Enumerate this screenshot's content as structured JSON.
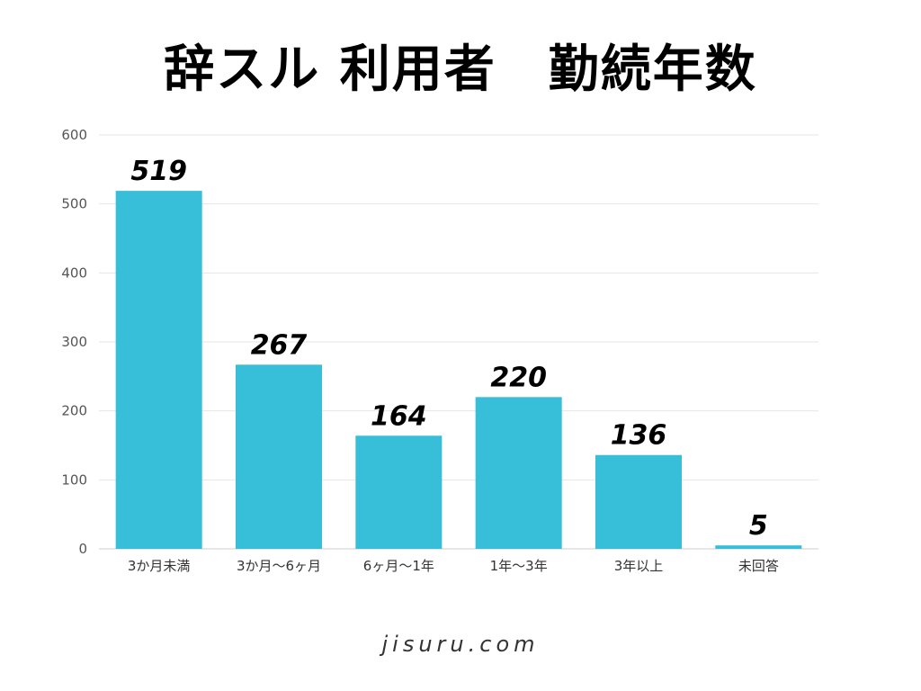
{
  "chart_data": {
    "type": "bar",
    "title": "辞スル 利用者　勤続年数",
    "categories": [
      "3か月未満",
      "3か月～6ヶ月",
      "6ヶ月～1年",
      "1年～3年",
      "3年以上",
      "未回答"
    ],
    "values": [
      519,
      267,
      164,
      220,
      136,
      5
    ],
    "data_labels": [
      "519",
      "267",
      "164",
      "220",
      "136",
      "5"
    ],
    "yticks": [
      0,
      100,
      200,
      300,
      400,
      500,
      600
    ],
    "ylim": [
      0,
      600
    ],
    "xlabel": "",
    "ylabel": "",
    "grid": true,
    "legend": "none",
    "bar_color": "#37BFD9"
  },
  "footer": {
    "text": "jisuru.com"
  }
}
